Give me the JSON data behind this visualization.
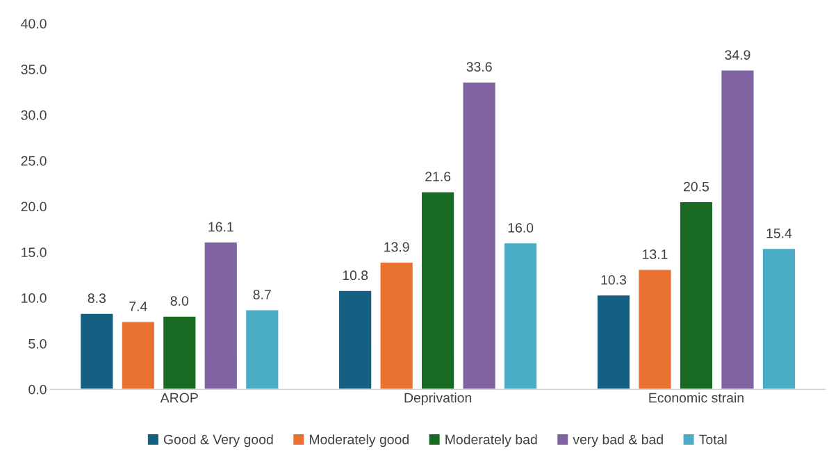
{
  "chart_data": {
    "type": "bar",
    "categories": [
      "AROP",
      "Deprivation",
      "Economic strain"
    ],
    "series": [
      {
        "name": "Good & Very good",
        "color": "#156082",
        "values": [
          8.3,
          10.8,
          10.3
        ],
        "value_labels": [
          "8.3",
          "10.8",
          "10.3"
        ]
      },
      {
        "name": "Moderately good",
        "color": "#e97132",
        "values": [
          7.4,
          13.9,
          13.1
        ],
        "value_labels": [
          "7.4",
          "13.9",
          "13.1"
        ]
      },
      {
        "name": "Moderately bad",
        "color": "#196b24",
        "values": [
          8.0,
          21.6,
          20.5
        ],
        "value_labels": [
          "8.0",
          "21.6",
          "20.5"
        ]
      },
      {
        "name": "very bad & bad",
        "color": "#8064a2",
        "values": [
          16.1,
          33.6,
          34.9
        ],
        "value_labels": [
          "16.1",
          "33.6",
          "34.9"
        ]
      },
      {
        "name": "Total",
        "color": "#4bacc6",
        "values": [
          8.7,
          16.0,
          15.4
        ],
        "value_labels": [
          "8.7",
          "16.0",
          "15.4"
        ]
      }
    ],
    "ylim": [
      0,
      40
    ],
    "yticks": [
      {
        "value": 0,
        "label": "0.0"
      },
      {
        "value": 5,
        "label": "5.0"
      },
      {
        "value": 10,
        "label": "10.0"
      },
      {
        "value": 15,
        "label": "15.0"
      },
      {
        "value": 20,
        "label": "20.0"
      },
      {
        "value": 25,
        "label": "25.0"
      },
      {
        "value": 30,
        "label": "30.0"
      },
      {
        "value": 35,
        "label": "35.0"
      },
      {
        "value": 40,
        "label": "40.0"
      }
    ],
    "grid": false,
    "legend": "bottom"
  }
}
